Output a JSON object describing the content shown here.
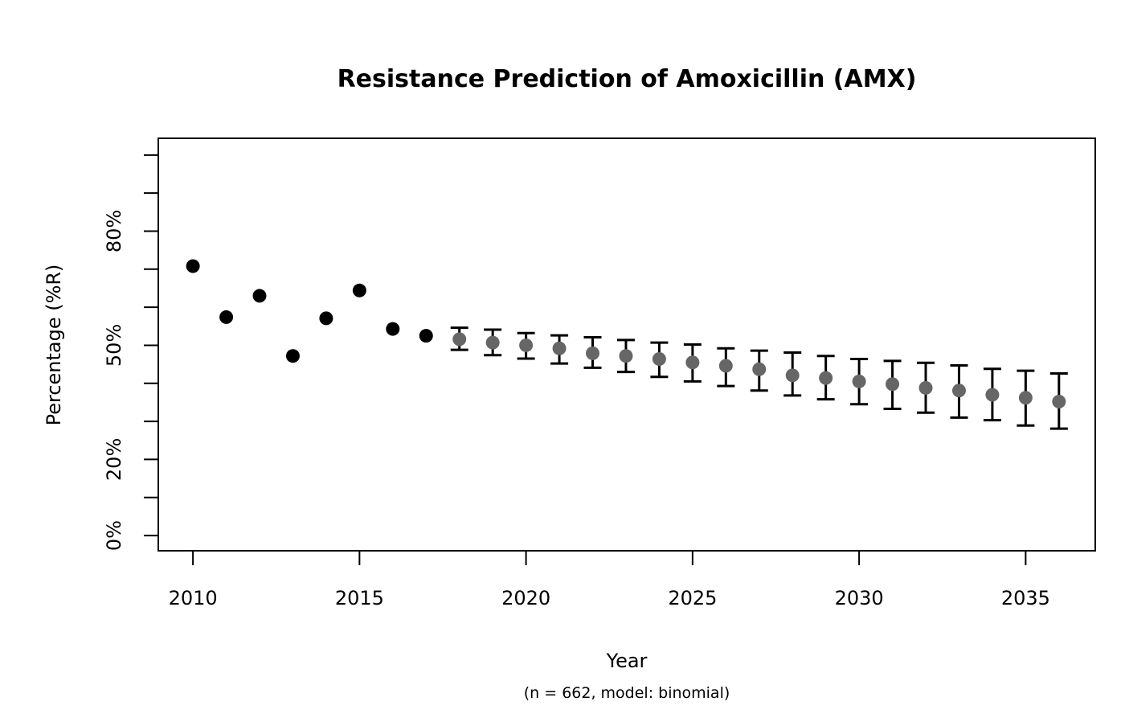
{
  "chart_data": {
    "type": "scatter",
    "title": "Resistance Prediction of Amoxicillin (AMX)",
    "xlabel": "Year",
    "xlabel_note": "(n = 662, model: binomial)",
    "ylabel": "Percentage (%R)",
    "grid": false,
    "legend": "none",
    "xlim": [
      2008.96,
      2037.09
    ],
    "ylim_pct": [
      -4.0,
      104.4
    ],
    "x_ticks": [
      2010,
      2015,
      2020,
      2025,
      2030,
      2035
    ],
    "y_ticks_pct": [
      0,
      10,
      20,
      30,
      40,
      50,
      60,
      70,
      80,
      90,
      100
    ],
    "y_tick_labels": {
      "0": "0%",
      "20": "20%",
      "50": "50%",
      "80": "80%"
    },
    "colors": {
      "observed": "#000000",
      "predicted": "#666666",
      "error_bar": "#000000",
      "axis": "#000000"
    },
    "series": [
      {
        "name": "observed",
        "style": "points",
        "color_key": "observed",
        "points": [
          {
            "x": 2010,
            "y": 70.8
          },
          {
            "x": 2011,
            "y": 57.4
          },
          {
            "x": 2012,
            "y": 63.0
          },
          {
            "x": 2013,
            "y": 47.2
          },
          {
            "x": 2014,
            "y": 57.1
          },
          {
            "x": 2015,
            "y": 64.4
          },
          {
            "x": 2016,
            "y": 54.3
          },
          {
            "x": 2017,
            "y": 52.5
          }
        ]
      },
      {
        "name": "predicted",
        "style": "points-with-ci",
        "color_key": "predicted",
        "points": [
          {
            "x": 2018,
            "y": 51.6,
            "lo": 48.8,
            "hi": 54.6
          },
          {
            "x": 2019,
            "y": 50.7,
            "lo": 47.4,
            "hi": 54.1
          },
          {
            "x": 2020,
            "y": 50.0,
            "lo": 46.5,
            "hi": 53.2
          },
          {
            "x": 2021,
            "y": 49.2,
            "lo": 45.2,
            "hi": 52.6
          },
          {
            "x": 2022,
            "y": 47.9,
            "lo": 44.1,
            "hi": 52.1
          },
          {
            "x": 2023,
            "y": 47.2,
            "lo": 43.0,
            "hi": 51.4
          },
          {
            "x": 2024,
            "y": 46.4,
            "lo": 41.7,
            "hi": 50.7
          },
          {
            "x": 2025,
            "y": 45.5,
            "lo": 40.5,
            "hi": 50.2
          },
          {
            "x": 2026,
            "y": 44.6,
            "lo": 39.3,
            "hi": 49.2
          },
          {
            "x": 2027,
            "y": 43.7,
            "lo": 38.1,
            "hi": 48.6
          },
          {
            "x": 2028,
            "y": 42.1,
            "lo": 36.8,
            "hi": 48.1
          },
          {
            "x": 2029,
            "y": 41.4,
            "lo": 35.8,
            "hi": 47.2
          },
          {
            "x": 2030,
            "y": 40.5,
            "lo": 34.5,
            "hi": 46.4
          },
          {
            "x": 2031,
            "y": 39.8,
            "lo": 33.3,
            "hi": 45.9
          },
          {
            "x": 2032,
            "y": 38.8,
            "lo": 32.3,
            "hi": 45.4
          },
          {
            "x": 2033,
            "y": 38.1,
            "lo": 31.0,
            "hi": 44.7
          },
          {
            "x": 2034,
            "y": 37.0,
            "lo": 30.3,
            "hi": 43.8
          },
          {
            "x": 2035,
            "y": 36.2,
            "lo": 28.9,
            "hi": 43.3
          },
          {
            "x": 2036,
            "y": 35.2,
            "lo": 28.1,
            "hi": 42.6
          }
        ]
      }
    ]
  }
}
